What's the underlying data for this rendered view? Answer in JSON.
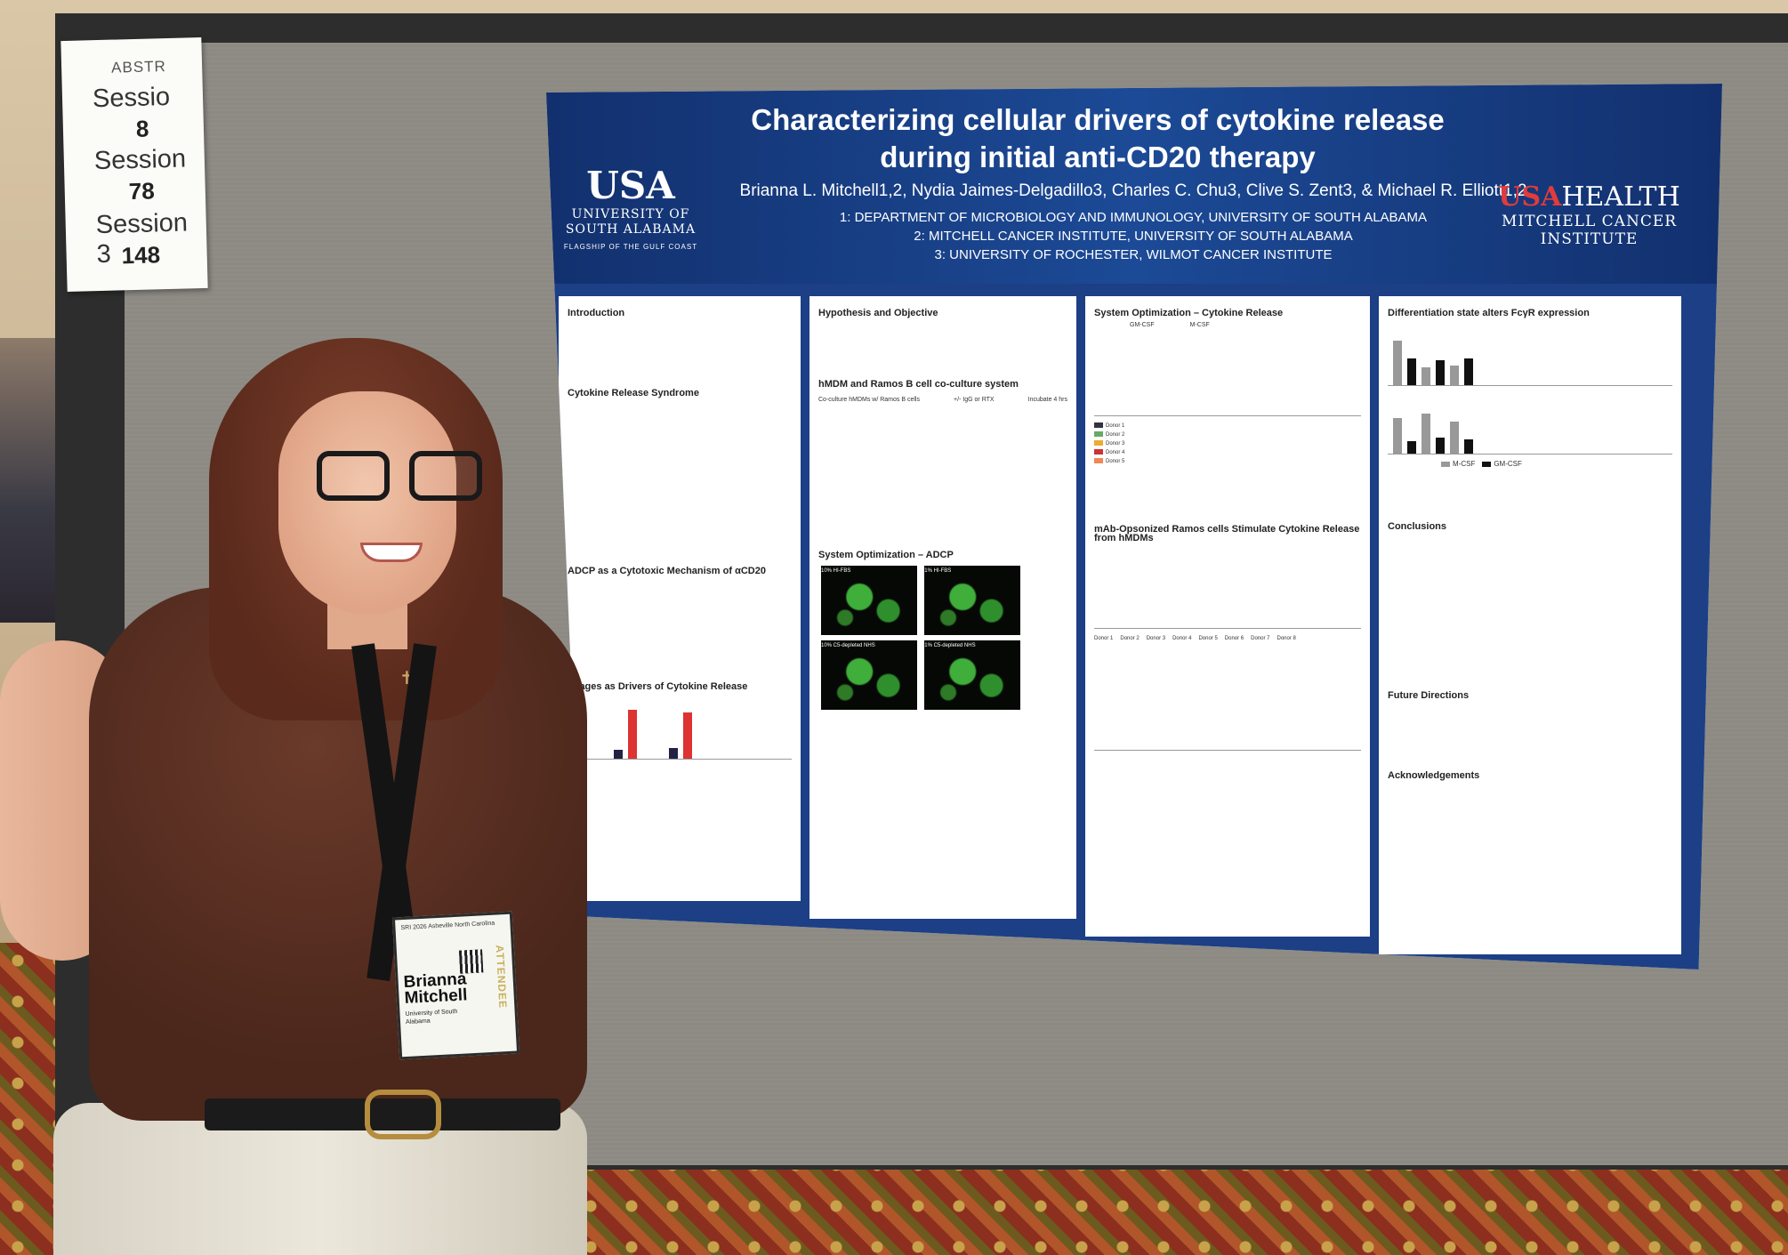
{
  "session_sign": {
    "abstr": "ABSTR",
    "s1": "Sessio",
    "n1": "8",
    "s2": "Session",
    "n2": "78",
    "s3": "Session 3",
    "n3": "148"
  },
  "poster": {
    "title_line1": "Characterizing cellular drivers of cytokine release",
    "title_line2": "during initial anti-CD20 therapy",
    "authors": "Brianna L. Mitchell1,2, Nydia Jaimes-Delgadillo3, Charles C. Chu3, Clive S. Zent3, & Michael R. Elliott1,2",
    "affil1": "1: DEPARTMENT OF MICROBIOLOGY AND IMMUNOLOGY, UNIVERSITY OF SOUTH ALABAMA",
    "affil2": "2: MITCHELL CANCER INSTITUTE, UNIVERSITY OF SOUTH ALABAMA",
    "affil3": "3: UNIVERSITY OF ROCHESTER, WILMOT CANCER INSTITUTE",
    "usa_logo": {
      "mark": "USA",
      "name1": "UNIVERSITY OF",
      "name2": "SOUTH ALABAMA",
      "tagline": "FLAGSHIP OF THE GULF COAST"
    },
    "health_logo": {
      "mark": "USA",
      "word": "HEALTH",
      "name": "MITCHELL CANCER INSTITUTE"
    },
    "panel1": {
      "h_intro": "Introduction",
      "h_crs": "Cytokine Release Syndrome",
      "h_adcp": "ADCP as a Cytotoxic Mechanism of αCD20",
      "h_drivers": "phages as Drivers of Cytokine Release"
    },
    "panel2": {
      "h_hypothesis": "Hypothesis and Objective",
      "h_coculture": "hMDM and Ramos B cell co-culture system",
      "coculture_label": "Co-culture hMDMs w/ Ramos B cells",
      "treatment_label": "+/- IgG or RTX",
      "incubate_label": "Incubate 4 hrs",
      "h_adcp": "System Optimization – ADCP",
      "micro1": "10% HI-FBS",
      "micro2": "1% HI-FBS",
      "micro3": "10% C5-depleted NHS",
      "micro4": "1% C5-depleted NHS"
    },
    "panel3": {
      "h_cytokine": "System Optimization – Cytokine Release",
      "gmcsf": "GM-CSF",
      "mcsf": "M-CSF",
      "donors": [
        "Donor 1",
        "Donor 2",
        "Donor 3",
        "Donor 4",
        "Donor 5"
      ],
      "h_mab": "mAb-Opsonized Ramos cells Stimulate Cytokine Release from hMDMs",
      "donors8": [
        "Donor 1",
        "Donor 2",
        "Donor 3",
        "Donor 4",
        "Donor 5",
        "Donor 6",
        "Donor 7",
        "Donor 8"
      ]
    },
    "panel4": {
      "h_diff": "Differentiation state alters FcγR expression",
      "legend_mcsf": "M-CSF",
      "legend_gmcsf": "GM-CSF",
      "h_conclusions": "Conclusions",
      "h_future": "Future Directions",
      "h_ack": "Acknowledgements"
    }
  },
  "badge": {
    "header": "SRI 2026 Asheville North Carolina",
    "name_first": "Brianna",
    "name_last": "Mitchell",
    "school": "University of South Alabama",
    "role": "ATTENDEE"
  }
}
